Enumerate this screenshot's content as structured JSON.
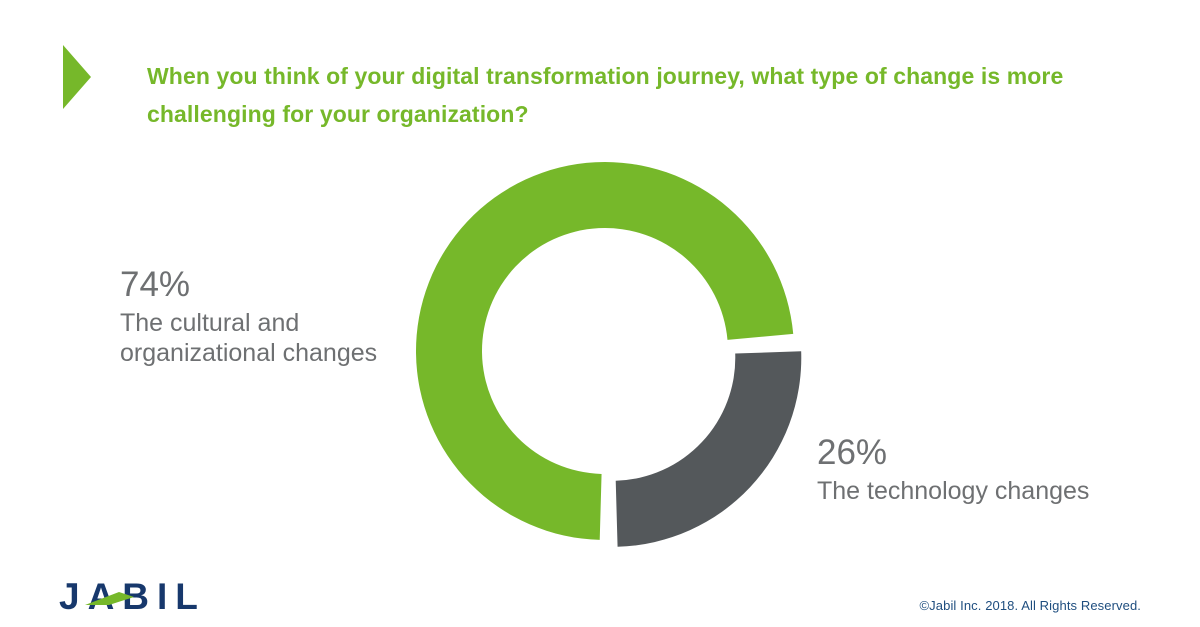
{
  "header": {
    "question": "When you think of your digital transformation journey, what type of change is more challenging for your organization?"
  },
  "chart_data": {
    "type": "pie",
    "variant": "donut",
    "title": "When you think of your digital transformation journey, what type of change is more challenging for your organization?",
    "slices": [
      {
        "label": "The cultural and organizational changes",
        "value": 74,
        "display": "74%",
        "color": "#76B82A",
        "exploded": false
      },
      {
        "label": "The technology changes",
        "value": 26,
        "display": "26%",
        "color": "#54585B",
        "exploded": true
      }
    ],
    "start_angle_deg": 180,
    "direction": "clockwise",
    "donut_hole_ratio": 0.65,
    "legend_position": "side-callouts"
  },
  "callouts": {
    "left": {
      "pct": "74%",
      "lines": [
        "The cultural and",
        "organizational changes"
      ]
    },
    "right": {
      "pct": "26%",
      "lines": [
        "The technology changes"
      ]
    }
  },
  "footer": {
    "logo_text": "JABIL",
    "copyright": "©Jabil Inc. 2018. All Rights Reserved."
  },
  "colors": {
    "green": "#76B82A",
    "slice_gray": "#54585B",
    "label_gray": "#6E7072",
    "logo_navy": "#17386C",
    "copyright_navy": "#1F4E7F",
    "background": "#FFFFFF"
  }
}
